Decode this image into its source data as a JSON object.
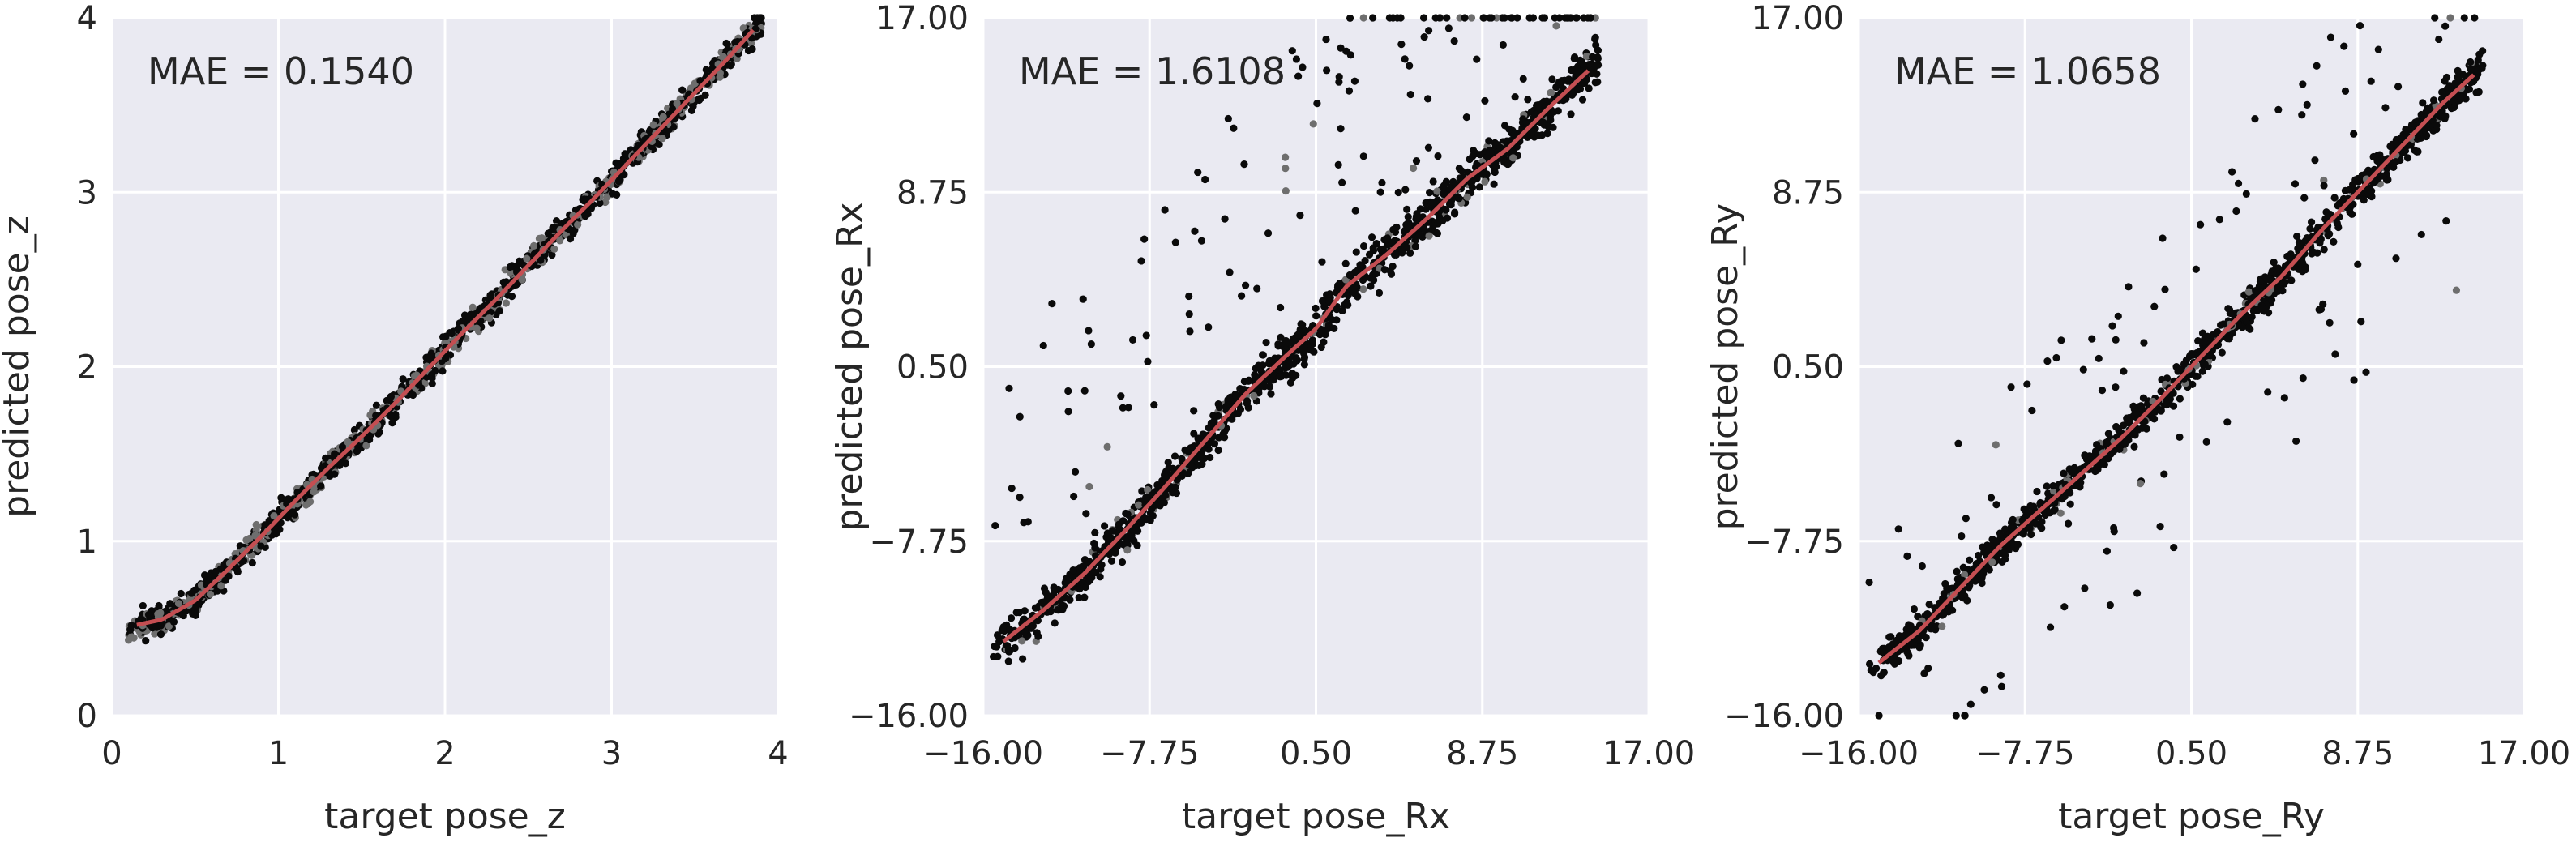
{
  "chart_data": [
    {
      "type": "scatter",
      "xlabel": "target pose_z",
      "ylabel": "predicted pose_z",
      "xlim": [
        0,
        4
      ],
      "ylim": [
        0,
        4
      ],
      "xticks": [
        0,
        1,
        2,
        3,
        4
      ],
      "yticks": [
        0,
        1,
        2,
        3,
        4
      ],
      "xtick_labels": [
        "0",
        "1",
        "2",
        "3",
        "4"
      ],
      "ytick_labels": [
        "0",
        "1",
        "2",
        "3",
        "4"
      ],
      "annotation": "MAE = 0.1540",
      "grid": true,
      "background": "#eaeaf2",
      "trend_color": "#c44e52",
      "trend_line": {
        "x": [
          0.15,
          0.3,
          0.5,
          0.7,
          0.9,
          1.1,
          1.3,
          1.5,
          1.7,
          1.9,
          2.1,
          2.3,
          2.5,
          2.7,
          2.9,
          3.1,
          3.3,
          3.5,
          3.7,
          3.85
        ],
        "y": [
          0.52,
          0.55,
          0.66,
          0.84,
          1.03,
          1.23,
          1.42,
          1.6,
          1.79,
          1.99,
          2.19,
          2.38,
          2.58,
          2.78,
          2.97,
          3.17,
          3.37,
          3.57,
          3.77,
          3.93
        ]
      },
      "points_note": "~1500 points clustered tightly along y = x from x = 0.1 to 3.9"
    },
    {
      "type": "scatter",
      "xlabel": "target pose_Rx",
      "ylabel": "predicted pose_Rx",
      "xlim": [
        -16,
        17
      ],
      "ylim": [
        -16,
        17
      ],
      "xticks": [
        -16,
        -7.75,
        0.5,
        8.75,
        17
      ],
      "yticks": [
        -16,
        -7.75,
        0.5,
        8.75,
        17
      ],
      "xtick_labels": [
        "−16.00",
        "−7.75",
        "0.50",
        "8.75",
        "17.00"
      ],
      "ytick_labels": [
        "−16.00",
        "−7.75",
        "0.50",
        "8.75",
        "17.00"
      ],
      "annotation": "MAE = 1.6108",
      "grid": true,
      "background": "#eaeaf2",
      "trend_color": "#c44e52",
      "trend_line": {
        "x": [
          -15,
          -13,
          -11,
          -9,
          -7,
          -5,
          -3,
          -1,
          0.5,
          2,
          4,
          6,
          8,
          10,
          12,
          14
        ],
        "y": [
          -12.5,
          -11,
          -9.3,
          -7.3,
          -5.2,
          -3,
          -0.8,
          1,
          2.3,
          4.3,
          5.8,
          7.5,
          9.4,
          10.8,
          12.7,
          14.5
        ]
      },
      "points_note": "~1500 points along y = x from x = -15.5 to 14.5 with many outliers above the diagonal"
    },
    {
      "type": "scatter",
      "xlabel": "target pose_Ry",
      "ylabel": "predicted pose_Ry",
      "xlim": [
        -16,
        17
      ],
      "ylim": [
        -16,
        17
      ],
      "xticks": [
        -16,
        -7.75,
        0.5,
        8.75,
        17
      ],
      "yticks": [
        -16,
        -7.75,
        0.5,
        8.75,
        17
      ],
      "xtick_labels": [
        "−16.00",
        "−7.75",
        "0.50",
        "8.75",
        "17.00"
      ],
      "ytick_labels": [
        "−16.00",
        "−7.75",
        "0.50",
        "8.75",
        "17.00"
      ],
      "annotation": "MAE = 1.0658",
      "grid": true,
      "background": "#eaeaf2",
      "trend_color": "#c44e52",
      "trend_line": {
        "x": [
          -15,
          -13,
          -11,
          -9,
          -7,
          -5,
          -3,
          -1,
          1,
          3,
          5,
          7,
          9,
          11,
          13,
          14.5
        ],
        "y": [
          -13.5,
          -12,
          -10,
          -8,
          -6.3,
          -4.6,
          -2.9,
          -1,
          1,
          3,
          4.8,
          7,
          9,
          11,
          13,
          14.3
        ]
      },
      "points_note": "~1500 points along y = x from x = -15.5 to 15 with outliers both above and below the diagonal"
    }
  ]
}
